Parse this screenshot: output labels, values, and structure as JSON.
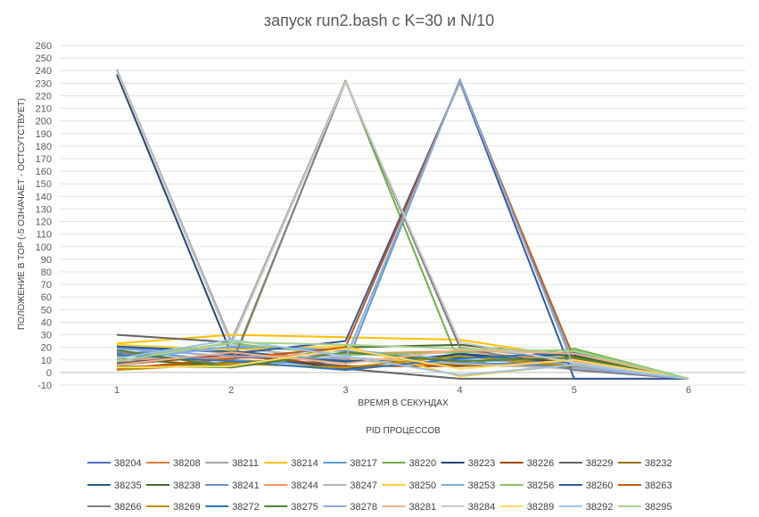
{
  "chart_data": {
    "type": "line",
    "title": "запуск run2.bash с K=30 и N/10",
    "xlabel": "ВРЕМЯ В СЕКУНДАХ",
    "ylabel": "ПОЛОЖЕНИЕ В TOP (-5 ОЗНАЧАЕТ - ОСТСУТСТВУЕТ)",
    "legend_title": "PID ПРОЦЕССОВ",
    "legend_position": "bottom",
    "grid": true,
    "x": [
      1,
      2,
      3,
      4,
      5,
      6
    ],
    "ylim": [
      -10,
      260
    ],
    "yticks": [
      -10,
      0,
      10,
      20,
      30,
      40,
      50,
      60,
      70,
      80,
      90,
      100,
      110,
      120,
      130,
      140,
      150,
      160,
      170,
      180,
      190,
      200,
      210,
      220,
      230,
      240,
      250,
      260
    ],
    "series": [
      {
        "name": "38204",
        "color": "#4472C4",
        "values": [
          20,
          16,
          8,
          14,
          7,
          -5
        ]
      },
      {
        "name": "38208",
        "color": "#ED7D31",
        "values": [
          8,
          12,
          10,
          5,
          8,
          -5
        ]
      },
      {
        "name": "38211",
        "color": "#A5A5A5",
        "values": [
          241,
          25,
          232,
          20,
          10,
          -5
        ]
      },
      {
        "name": "38214",
        "color": "#FFC000",
        "values": [
          23,
          30,
          28,
          26,
          12,
          -5
        ]
      },
      {
        "name": "38217",
        "color": "#5B9BD5",
        "values": [
          17,
          10,
          5,
          233,
          6,
          -5
        ]
      },
      {
        "name": "38220",
        "color": "#70AD47",
        "values": [
          5,
          4,
          232,
          6,
          19,
          -5
        ]
      },
      {
        "name": "38223",
        "color": "#264478",
        "values": [
          237,
          15,
          3,
          15,
          8,
          -5
        ]
      },
      {
        "name": "38226",
        "color": "#9E480E",
        "values": [
          6,
          14,
          5,
          5,
          10,
          -5
        ]
      },
      {
        "name": "38229",
        "color": "#636363",
        "values": [
          30,
          24,
          3,
          -5,
          -5,
          -5
        ]
      },
      {
        "name": "38232",
        "color": "#997300",
        "values": [
          4,
          8,
          12,
          6,
          4,
          -5
        ]
      },
      {
        "name": "38235",
        "color": "#255E91",
        "values": [
          21,
          17,
          9,
          12,
          14,
          -5
        ]
      },
      {
        "name": "38238",
        "color": "#43682B",
        "values": [
          11,
          5,
          20,
          22,
          13,
          -5
        ]
      },
      {
        "name": "38241",
        "color": "#698ED0",
        "values": [
          15,
          20,
          17,
          8,
          5,
          -5
        ]
      },
      {
        "name": "38244",
        "color": "#F1975A",
        "values": [
          10,
          12,
          15,
          17,
          9,
          -5
        ]
      },
      {
        "name": "38247",
        "color": "#B7B7B7",
        "values": [
          13,
          19,
          12,
          7,
          3,
          -5
        ]
      },
      {
        "name": "38250",
        "color": "#FFCD33",
        "values": [
          22,
          18,
          21,
          -3,
          6,
          -5
        ]
      },
      {
        "name": "38253",
        "color": "#7CAFDD",
        "values": [
          9,
          21,
          18,
          10,
          7,
          -5
        ]
      },
      {
        "name": "38256",
        "color": "#8CC168",
        "values": [
          12,
          23,
          14,
          16,
          18,
          -5
        ]
      },
      {
        "name": "38260",
        "color": "#335AA1",
        "values": [
          7,
          15,
          25,
          231,
          -5,
          -5
        ]
      },
      {
        "name": "38263",
        "color": "#C55A11",
        "values": [
          3,
          11,
          20,
          231,
          11,
          -5
        ]
      },
      {
        "name": "38266",
        "color": "#7F7F7F",
        "values": [
          16,
          6,
          231,
          20,
          2,
          -5
        ]
      },
      {
        "name": "38269",
        "color": "#BF9000",
        "values": [
          2,
          7,
          4,
          13,
          5,
          -5
        ]
      },
      {
        "name": "38272",
        "color": "#2F75B5",
        "values": [
          14,
          9,
          2,
          11,
          16,
          -5
        ]
      },
      {
        "name": "38275",
        "color": "#548235",
        "values": [
          18,
          4,
          16,
          9,
          12,
          -5
        ]
      },
      {
        "name": "38278",
        "color": "#8FAADC",
        "values": [
          19,
          13,
          11,
          232,
          4,
          -5
        ]
      },
      {
        "name": "38281",
        "color": "#F4B183",
        "values": [
          6,
          16,
          7,
          18,
          15,
          -5
        ]
      },
      {
        "name": "38284",
        "color": "#C9C9C9",
        "values": [
          240,
          22,
          231,
          24,
          8,
          -5
        ]
      },
      {
        "name": "38289",
        "color": "#FFD966",
        "values": [
          4,
          5,
          19,
          3,
          10,
          -5
        ]
      },
      {
        "name": "38292",
        "color": "#9DC3E6",
        "values": [
          11,
          26,
          13,
          -2,
          6,
          -5
        ]
      },
      {
        "name": "38295",
        "color": "#A9D18E",
        "values": [
          9,
          24,
          22,
          19,
          17,
          -5
        ]
      }
    ]
  }
}
